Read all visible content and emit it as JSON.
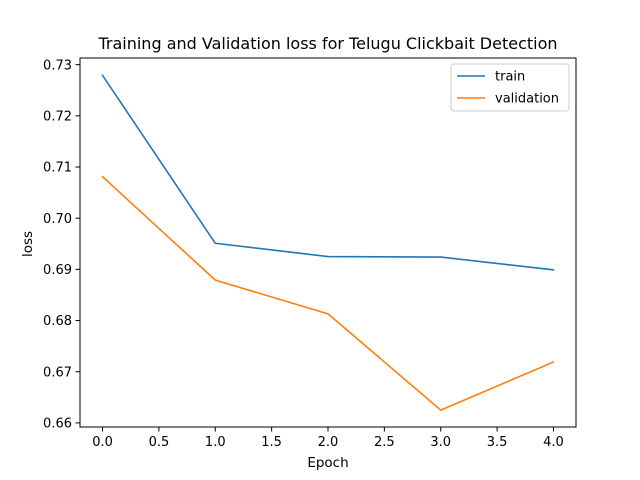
{
  "chart_data": {
    "type": "line",
    "title": "Training and Validation loss for Telugu Clickbait Detection",
    "xlabel": "Epoch",
    "ylabel": "loss",
    "xlim": [
      -0.2,
      4.2
    ],
    "ylim": [
      0.6592,
      0.7313
    ],
    "xticks": [
      0.0,
      0.5,
      1.0,
      1.5,
      2.0,
      2.5,
      3.0,
      3.5,
      4.0
    ],
    "xtick_labels": [
      "0.0",
      "0.5",
      "1.0",
      "1.5",
      "2.0",
      "2.5",
      "3.0",
      "3.5",
      "4.0"
    ],
    "yticks": [
      0.66,
      0.67,
      0.68,
      0.69,
      0.7,
      0.71,
      0.72,
      0.73
    ],
    "ytick_labels": [
      "0.66",
      "0.67",
      "0.68",
      "0.69",
      "0.70",
      "0.71",
      "0.72",
      "0.73"
    ],
    "grid": false,
    "legend_position": "upper right",
    "x": [
      0,
      1,
      2,
      3,
      4
    ],
    "series": [
      {
        "name": "train",
        "color": "#1f77b4",
        "values": [
          0.7279,
          0.6951,
          0.6925,
          0.6924,
          0.6899
        ]
      },
      {
        "name": "validation",
        "color": "#ff7f0e",
        "values": [
          0.7081,
          0.6879,
          0.6813,
          0.6625,
          0.6719
        ]
      }
    ]
  }
}
